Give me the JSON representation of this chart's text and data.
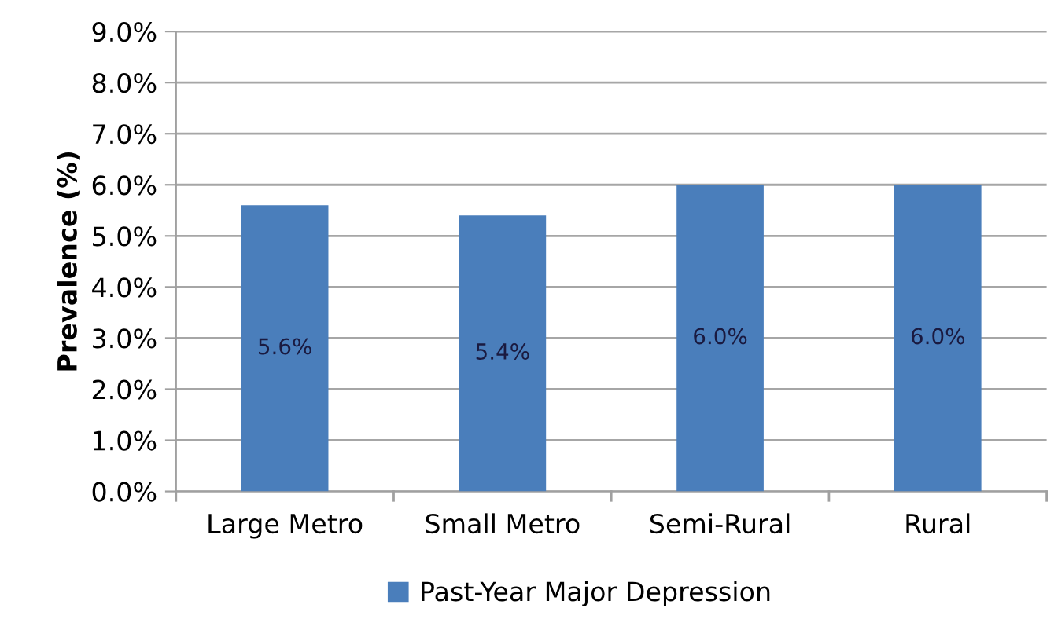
{
  "chart_data": {
    "type": "bar",
    "ylabel": "Prevalence (%)",
    "categories": [
      "Large Metro",
      "Small Metro",
      "Semi-Rural",
      "Rural"
    ],
    "series": [
      {
        "name": "Past-Year Major Depression",
        "color": "#4a7ebb",
        "values": [
          5.6,
          5.4,
          6.0,
          6.0
        ],
        "value_labels": [
          "5.6%",
          "5.4%",
          "6.0%",
          "6.0%"
        ]
      }
    ],
    "ylim": [
      0,
      9
    ],
    "yticks": [
      {
        "value": 0,
        "label": "0.0%"
      },
      {
        "value": 1,
        "label": "1.0%"
      },
      {
        "value": 2,
        "label": "2.0%"
      },
      {
        "value": 3,
        "label": "3.0%"
      },
      {
        "value": 4,
        "label": "4.0%"
      },
      {
        "value": 5,
        "label": "5.0%"
      },
      {
        "value": 6,
        "label": "6.0%"
      },
      {
        "value": 7,
        "label": "7.0%"
      },
      {
        "value": 8,
        "label": "8.0%"
      },
      {
        "value": 9,
        "label": "9.0%"
      }
    ],
    "grid": "y",
    "legend": "bottom"
  }
}
